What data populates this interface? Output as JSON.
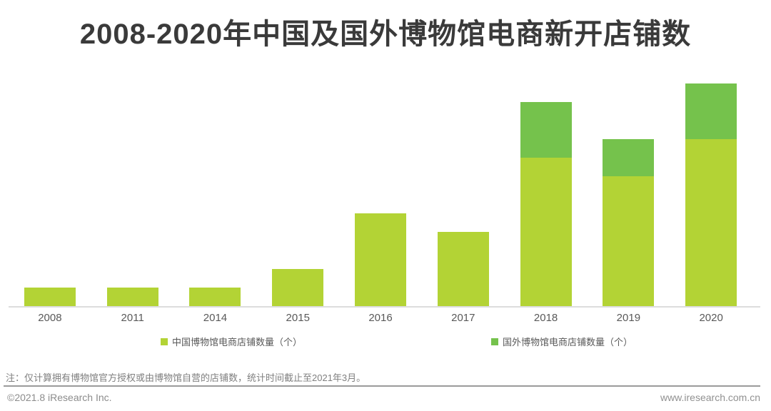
{
  "title": "2008-2020年中国及国外博物馆电商新开店铺数",
  "note": "注：仅计算拥有博物馆官方授权或由博物馆自营的店铺数，统计时间截止至2021年3月。",
  "footer": {
    "copyright": "©2021.8 iResearch Inc.",
    "website": "www.iresearch.com.cn"
  },
  "colors": {
    "china_series": "#b3d335",
    "foreign_series": "#75c24c",
    "title_text": "#3a3a3a",
    "axis_label": "#595959",
    "axis_line": "#dddddd",
    "note_text": "#7f7f7f",
    "footer_text": "#8c8c8c",
    "divider": "#9a9a9a"
  },
  "legend": [
    {
      "label": "中国博物馆电商店铺数量（个）",
      "color": "#b3d335"
    },
    {
      "label": "国外博物馆电商店铺数量（个）",
      "color": "#75c24c"
    }
  ],
  "chart_data": {
    "type": "bar",
    "stacked": true,
    "title": "2008-2020年中国及国外博物馆电商新开店铺数",
    "categories": [
      "2008",
      "2011",
      "2014",
      "2015",
      "2016",
      "2017",
      "2018",
      "2019",
      "2020"
    ],
    "series": [
      {
        "name": "中国博物馆电商店铺数量（个）",
        "color": "#b3d335",
        "values": [
          2,
          2,
          2,
          4,
          10,
          8,
          16,
          14,
          18
        ]
      },
      {
        "name": "国外博物馆电商店铺数量（个）",
        "color": "#75c24c",
        "values": [
          0,
          0,
          0,
          0,
          0,
          0,
          6,
          4,
          6
        ]
      }
    ],
    "xlabel": "",
    "ylabel": "",
    "ylim": [
      0,
      24
    ],
    "y_axis_visible": false,
    "grid": false,
    "legend_position": "bottom",
    "values_estimated_from_pixels": true
  }
}
